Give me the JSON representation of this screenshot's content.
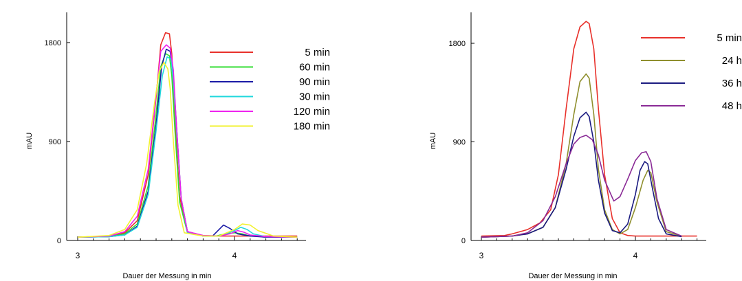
{
  "chart_data": [
    {
      "type": "line",
      "xlabel": "Dauer der Messung in min",
      "ylabel": "mAU",
      "xlim": [
        3,
        4.45
      ],
      "ylim": [
        0,
        2000
      ],
      "xticks": [
        3,
        4
      ],
      "yticks": [
        0,
        900,
        1800
      ],
      "grid": false,
      "legend_placement": "top-right",
      "series": [
        {
          "name": "5 min",
          "color": "#e8302a",
          "x": [
            3.0,
            3.2,
            3.3,
            3.38,
            3.45,
            3.5,
            3.53,
            3.56,
            3.585,
            3.6,
            3.62,
            3.65,
            3.7,
            3.8,
            3.9,
            4.0,
            4.1,
            4.4
          ],
          "y": [
            30,
            40,
            70,
            180,
            600,
            1300,
            1780,
            1890,
            1880,
            1700,
            1100,
            400,
            80,
            45,
            40,
            40,
            40,
            40
          ]
        },
        {
          "name": "60 min",
          "color": "#33dd33",
          "x": [
            3.0,
            3.2,
            3.3,
            3.38,
            3.45,
            3.5,
            3.53,
            3.56,
            3.585,
            3.6,
            3.62,
            3.65,
            3.7,
            3.8,
            3.88,
            3.94,
            4.0,
            4.05,
            4.1,
            4.2,
            4.4
          ],
          "y": [
            30,
            35,
            60,
            150,
            500,
            1150,
            1580,
            1700,
            1680,
            1500,
            1000,
            350,
            70,
            40,
            40,
            60,
            70,
            60,
            40,
            35,
            30
          ]
        },
        {
          "name": "90 min",
          "color": "#1a1aa6",
          "x": [
            3.0,
            3.2,
            3.3,
            3.38,
            3.45,
            3.5,
            3.535,
            3.565,
            3.59,
            3.61,
            3.63,
            3.66,
            3.7,
            3.8,
            3.86,
            3.93,
            3.97,
            4.02,
            4.1,
            4.2,
            4.4
          ],
          "y": [
            30,
            35,
            50,
            130,
            450,
            1050,
            1580,
            1740,
            1720,
            1500,
            1050,
            380,
            80,
            40,
            40,
            140,
            110,
            60,
            40,
            30,
            30
          ]
        },
        {
          "name": "30 min",
          "color": "#22d8dd",
          "x": [
            3.0,
            3.2,
            3.3,
            3.38,
            3.45,
            3.5,
            3.54,
            3.57,
            3.595,
            3.61,
            3.63,
            3.66,
            3.7,
            3.8,
            3.9,
            4.0,
            4.04,
            4.08,
            4.12,
            4.2,
            4.4
          ],
          "y": [
            30,
            35,
            50,
            120,
            420,
            1000,
            1500,
            1670,
            1650,
            1450,
            1000,
            380,
            70,
            40,
            40,
            90,
            120,
            100,
            60,
            35,
            30
          ]
        },
        {
          "name": "120 min",
          "color": "#ee22ee",
          "x": [
            3.0,
            3.2,
            3.3,
            3.38,
            3.45,
            3.5,
            3.53,
            3.565,
            3.59,
            3.61,
            3.63,
            3.66,
            3.7,
            3.8,
            3.9,
            3.97,
            4.02,
            4.06,
            4.1,
            4.2,
            4.4
          ],
          "y": [
            30,
            40,
            80,
            220,
            650,
            1320,
            1720,
            1780,
            1750,
            1550,
            1050,
            380,
            80,
            45,
            40,
            60,
            90,
            75,
            50,
            35,
            30
          ]
        },
        {
          "name": "180 min",
          "color": "#f2f230",
          "x": [
            3.0,
            3.2,
            3.3,
            3.38,
            3.44,
            3.49,
            3.52,
            3.55,
            3.575,
            3.59,
            3.61,
            3.64,
            3.68,
            3.8,
            3.9,
            4.0,
            4.05,
            4.1,
            4.15,
            4.25,
            4.4
          ],
          "y": [
            30,
            45,
            100,
            280,
            700,
            1250,
            1540,
            1620,
            1560,
            1380,
            900,
            320,
            70,
            40,
            40,
            100,
            150,
            140,
            90,
            40,
            30
          ]
        }
      ]
    },
    {
      "type": "line",
      "xlabel": "Dauer der Messung in min",
      "ylabel": "mAU",
      "xlim": [
        3,
        4.45
      ],
      "ylim": [
        0,
        2000
      ],
      "xticks": [
        3,
        4
      ],
      "yticks": [
        0,
        900,
        1800
      ],
      "grid": false,
      "legend_placement": "top-right",
      "series": [
        {
          "name": "5 min",
          "color": "#e8302a",
          "x": [
            3.0,
            3.15,
            3.2,
            3.3,
            3.38,
            3.45,
            3.5,
            3.55,
            3.6,
            3.64,
            3.68,
            3.7,
            3.73,
            3.76,
            3.8,
            3.85,
            3.9,
            3.95,
            4.0,
            4.2,
            4.4
          ],
          "y": [
            40,
            45,
            60,
            100,
            160,
            280,
            600,
            1200,
            1750,
            1950,
            2000,
            1980,
            1750,
            1200,
            600,
            200,
            70,
            45,
            40,
            40,
            40
          ]
        },
        {
          "name": "24 h",
          "color": "#8f8f2e",
          "x": [
            3.0,
            3.2,
            3.3,
            3.4,
            3.48,
            3.55,
            3.6,
            3.64,
            3.68,
            3.7,
            3.73,
            3.76,
            3.8,
            3.85,
            3.9,
            3.95,
            4.0,
            4.05,
            4.08,
            4.1,
            4.14,
            4.2,
            4.3
          ],
          "y": [
            30,
            40,
            60,
            120,
            300,
            700,
            1150,
            1450,
            1520,
            1480,
            1150,
            650,
            280,
            100,
            60,
            100,
            300,
            550,
            640,
            620,
            350,
            80,
            40
          ]
        },
        {
          "name": "36 h",
          "color": "#1a1a80",
          "x": [
            3.0,
            3.2,
            3.3,
            3.4,
            3.48,
            3.55,
            3.6,
            3.64,
            3.68,
            3.7,
            3.73,
            3.76,
            3.8,
            3.85,
            3.9,
            3.95,
            4.0,
            4.03,
            4.06,
            4.08,
            4.11,
            4.15,
            4.2,
            4.3
          ],
          "y": [
            30,
            40,
            60,
            120,
            300,
            650,
            950,
            1120,
            1170,
            1130,
            900,
            550,
            250,
            90,
            70,
            150,
            420,
            640,
            720,
            700,
            480,
            200,
            60,
            35
          ]
        },
        {
          "name": "48 h",
          "color": "#8a2a96",
          "x": [
            3.0,
            3.2,
            3.3,
            3.4,
            3.48,
            3.55,
            3.6,
            3.64,
            3.68,
            3.72,
            3.76,
            3.8,
            3.86,
            3.9,
            3.95,
            4.0,
            4.04,
            4.07,
            4.1,
            4.14,
            4.2,
            4.3
          ],
          "y": [
            30,
            40,
            70,
            180,
            400,
            700,
            880,
            940,
            960,
            920,
            780,
            550,
            360,
            400,
            560,
            730,
            800,
            810,
            720,
            380,
            100,
            40
          ]
        }
      ]
    }
  ]
}
